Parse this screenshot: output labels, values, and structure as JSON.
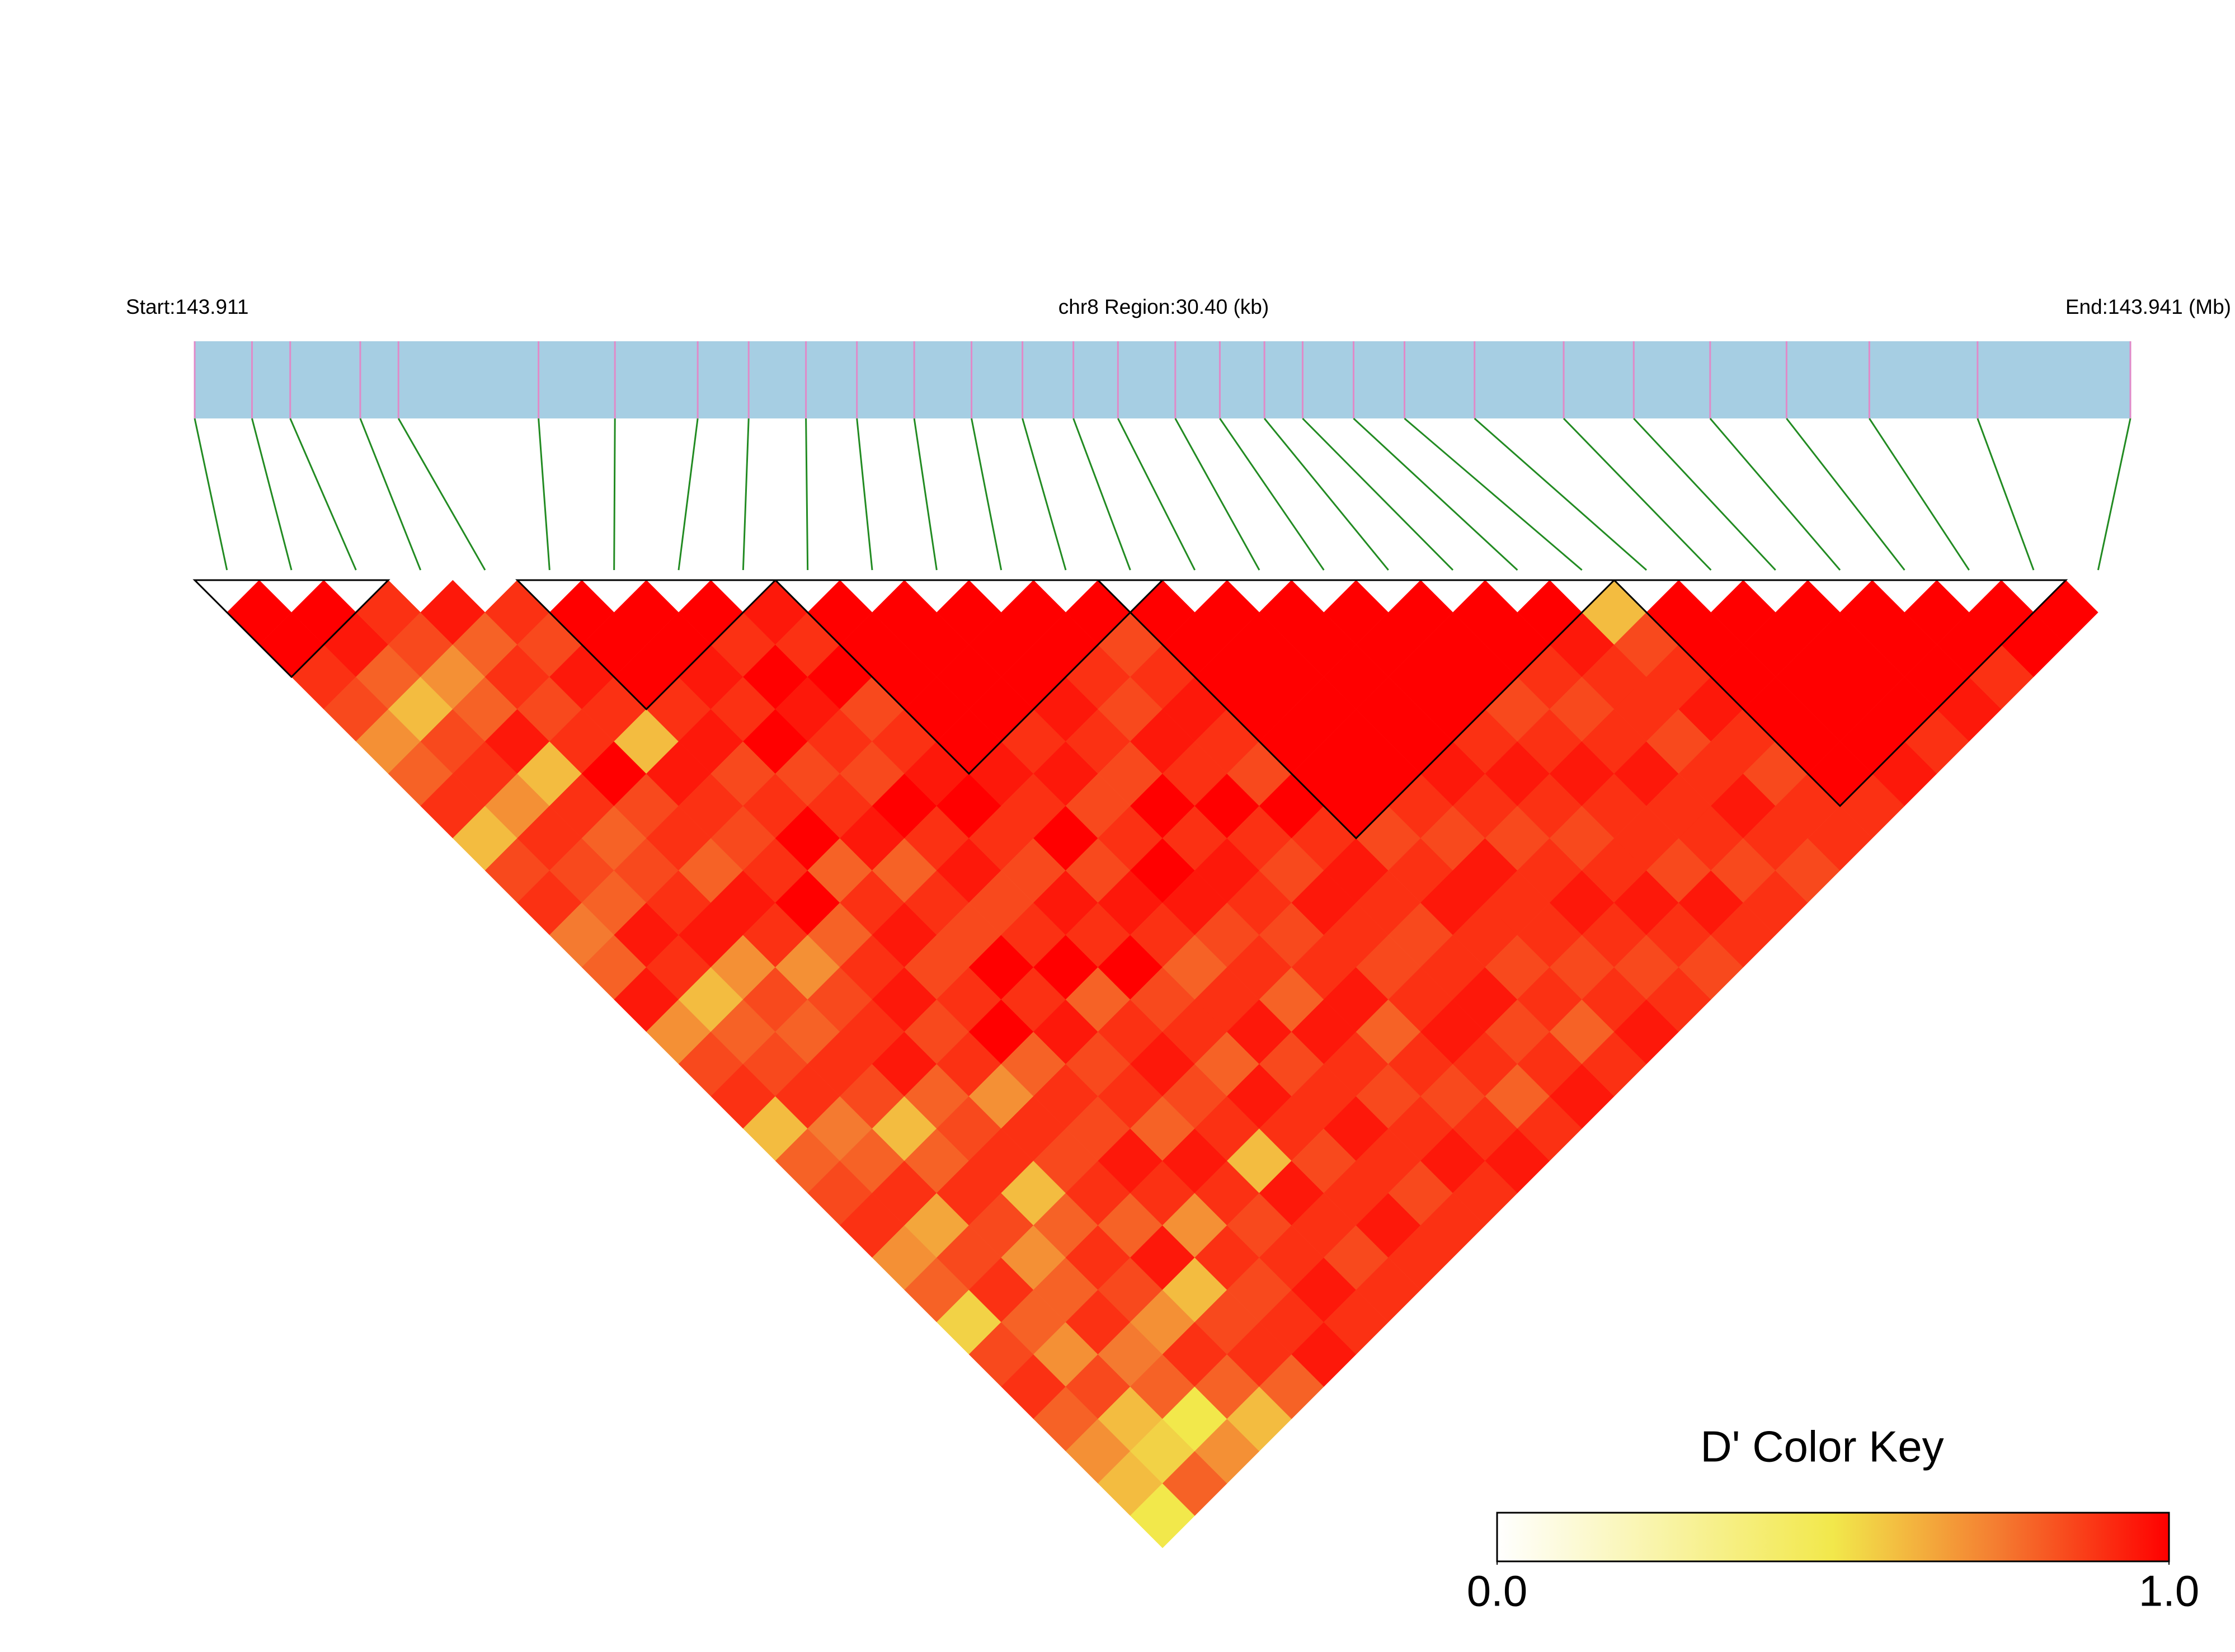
{
  "chart_data": {
    "type": "ld_heatmap",
    "start_label": "Start:143.911",
    "region_label": "chr8 Region:30.40 (kb)",
    "end_label": "End:143.941 (Mb)",
    "region_kb": 30.4,
    "snp_positions": [
      0,
      0.9,
      1.5,
      2.6,
      3.2,
      5.4,
      6.6,
      7.9,
      8.7,
      9.6,
      10.4,
      11.3,
      12.2,
      13.0,
      13.8,
      14.5,
      15.4,
      16.1,
      16.8,
      17.4,
      18.2,
      19.0,
      20.1,
      21.5,
      22.6,
      23.8,
      25.0,
      26.3,
      28.0,
      30.4
    ],
    "ld_matrix": [
      [
        1,
        1,
        0.9,
        0.85,
        0.7,
        0.8,
        0.9,
        0.6,
        0.85,
        0.9,
        0.75,
        0.8,
        0.95,
        0.7,
        0.85,
        0.9,
        0.6,
        0.8,
        0.85,
        0.9,
        0.7,
        0.8,
        0.55,
        0.85,
        0.9,
        0.8,
        0.7,
        0.6,
        0.5
      ],
      [
        1,
        0.95,
        0.8,
        0.6,
        0.85,
        0.9,
        0.7,
        0.9,
        0.85,
        0.8,
        0.95,
        0.9,
        0.6,
        0.8,
        0.85,
        0.9,
        0.75,
        0.8,
        0.9,
        0.65,
        0.85,
        0.9,
        0.8,
        0.7,
        0.85,
        0.6,
        0.55,
        0.8
      ],
      [
        0.9,
        0.85,
        0.7,
        0.8,
        0.95,
        0.6,
        0.9,
        0.8,
        0.85,
        0.9,
        0.95,
        0.7,
        0.85,
        0.8,
        0.9,
        0.85,
        0.6,
        0.8,
        0.9,
        0.85,
        0.7,
        0.8,
        0.9,
        0.75,
        0.8,
        0.5,
        0.7
      ],
      [
        0.95,
        0.8,
        0.9,
        0.85,
        0.9,
        1,
        0.85,
        0.9,
        0.8,
        0.95,
        0.9,
        0.7,
        0.85,
        0.9,
        0.95,
        0.8,
        0.85,
        0.9,
        0.6,
        0.8,
        0.9,
        0.85,
        0.7,
        0.9,
        0.8,
        0.6
      ],
      [
        0.9,
        0.85,
        0.95,
        0.9,
        0.6,
        0.95,
        0.9,
        0.85,
        0.9,
        1,
        0.8,
        0.9,
        0.95,
        0.85,
        0.9,
        0.7,
        0.9,
        0.85,
        0.9,
        0.8,
        0.95,
        0.6,
        0.85,
        0.9,
        0.8
      ],
      [
        1,
        1,
        1,
        0.9,
        0.95,
        0.85,
        0.9,
        1,
        0.8,
        0.9,
        0.95,
        0.85,
        0.9,
        1,
        0.8,
        0.9,
        0.85,
        0.95,
        0.9,
        0.7,
        0.9,
        0.85,
        0.9,
        0.95
      ],
      [
        1,
        1,
        0.95,
        0.9,
        1,
        0.85,
        0.9,
        0.95,
        0.8,
        0.9,
        0.85,
        1,
        0.9,
        0.95,
        0.85,
        0.9,
        0.8,
        0.95,
        0.9,
        0.85,
        0.9,
        0.95,
        0.9
      ],
      [
        1,
        0.9,
        1,
        0.95,
        0.9,
        0.85,
        1,
        0.9,
        0.95,
        0.85,
        0.9,
        1,
        0.8,
        0.9,
        0.95,
        0.85,
        0.9,
        0.6,
        0.95,
        0.9,
        0.85,
        0.9
      ],
      [
        0.95,
        0.9,
        1,
        0.85,
        0.9,
        0.95,
        1,
        0.9,
        0.85,
        0.95,
        0.9,
        1,
        0.85,
        0.9,
        0.8,
        0.95,
        0.9,
        0.85,
        0.9,
        0.95,
        0.9
      ],
      [
        1,
        1,
        1,
        1,
        1,
        0.95,
        0.9,
        1,
        0.85,
        0.95,
        0.9,
        0.8,
        0.9,
        0.95,
        0.85,
        0.9,
        0.95,
        0.9,
        0.85,
        0.9
      ],
      [
        1,
        1,
        1,
        1,
        0.9,
        0.95,
        0.85,
        0.9,
        1,
        0.95,
        0.85,
        0.9,
        0.8,
        0.95,
        0.9,
        0.85,
        0.9,
        0.95,
        0.9
      ],
      [
        1,
        1,
        1,
        0.95,
        0.9,
        0.85,
        1,
        0.9,
        0.95,
        0.9,
        0.85,
        0.9,
        0.95,
        0.8,
        0.9,
        0.85,
        0.9,
        0.95
      ],
      [
        1,
        1,
        0.9,
        0.85,
        0.95,
        0.9,
        1,
        0.9,
        0.85,
        0.95,
        0.9,
        0.85,
        0.9,
        0.95,
        0.9,
        0.8,
        0.9
      ],
      [
        1,
        0.85,
        0.9,
        0.95,
        0.9,
        0.85,
        1,
        0.9,
        0.95,
        0.9,
        0.85,
        0.9,
        0.95,
        0.85,
        0.9,
        0.95
      ],
      [
        1,
        1,
        1,
        1,
        1,
        1,
        1,
        0.85,
        0.9,
        0.95,
        0.9,
        0.85,
        0.9,
        0.8,
        0.9
      ],
      [
        1,
        1,
        1,
        1,
        1,
        1,
        0.9,
        0.85,
        0.95,
        0.9,
        0.9,
        0.85,
        0.9,
        0.95
      ],
      [
        1,
        1,
        1,
        1,
        1,
        0.95,
        0.9,
        0.85,
        0.9,
        0.95,
        0.9,
        0.85,
        0.9
      ],
      [
        1,
        1,
        1,
        1,
        0.9,
        0.95,
        0.9,
        0.85,
        0.9,
        0.95,
        0.9,
        0.85
      ],
      [
        1,
        1,
        1,
        0.85,
        0.9,
        0.95,
        0.9,
        0.9,
        0.85,
        0.95,
        0.9
      ],
      [
        1,
        1,
        0.9,
        0.85,
        0.9,
        0.95,
        0.9,
        0.9,
        0.85,
        0.9
      ],
      [
        1,
        0.95,
        0.9,
        0.9,
        0.85,
        0.9,
        0.95,
        0.9,
        0.85
      ],
      [
        0.6,
        0.85,
        0.9,
        0.95,
        0.9,
        0.85,
        0.9,
        0.9
      ],
      [
        1,
        1,
        1,
        1,
        1,
        1,
        0.9
      ],
      [
        1,
        1,
        1,
        1,
        1,
        0.95
      ],
      [
        1,
        1,
        1,
        1,
        0.9
      ],
      [
        1,
        1,
        1,
        0.95
      ],
      [
        1,
        1,
        0.9
      ],
      [
        1,
        1
      ],
      [
        1
      ]
    ],
    "blocks": [
      [
        0,
        2
      ],
      [
        5,
        8
      ],
      [
        9,
        14
      ],
      [
        14,
        21
      ],
      [
        22,
        28
      ]
    ],
    "color_scale": [
      {
        "value": 0,
        "color": "#ffffff"
      },
      {
        "value": 0.5,
        "color": "#f2e84b"
      },
      {
        "value": 0.75,
        "color": "#f47a30"
      },
      {
        "value": 1,
        "color": "#ff0000"
      }
    ],
    "key_title": "D' Color Key",
    "key_lim": [
      0,
      1
    ],
    "key_ticks": [
      {
        "value": 0,
        "label": "0.0"
      },
      {
        "value": 1,
        "label": "1.0"
      }
    ],
    "bar_color": "#a6cee3",
    "snp_line_color": "#e08ac8",
    "connector_color": "#228b22",
    "block_color": "#000000"
  }
}
